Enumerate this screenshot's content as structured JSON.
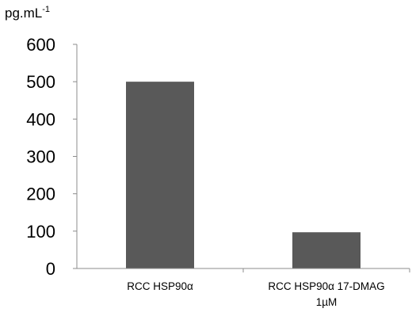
{
  "chart_data": {
    "type": "bar",
    "ylabel": "pg.mL",
    "ylabel_superscript": "-1",
    "categories": [
      [
        "RCC HSP90α"
      ],
      [
        "RCC HSP90α 17-DMAG",
        "1µM"
      ]
    ],
    "series": [
      {
        "values": [
          500,
          97
        ]
      }
    ],
    "ylim": [
      0,
      600
    ],
    "yticks": [
      "0",
      "100",
      "200",
      "300",
      "400",
      "500",
      "600"
    ],
    "grid": false,
    "bar_color": "#595959",
    "axis_color": "#8c8c8c"
  }
}
